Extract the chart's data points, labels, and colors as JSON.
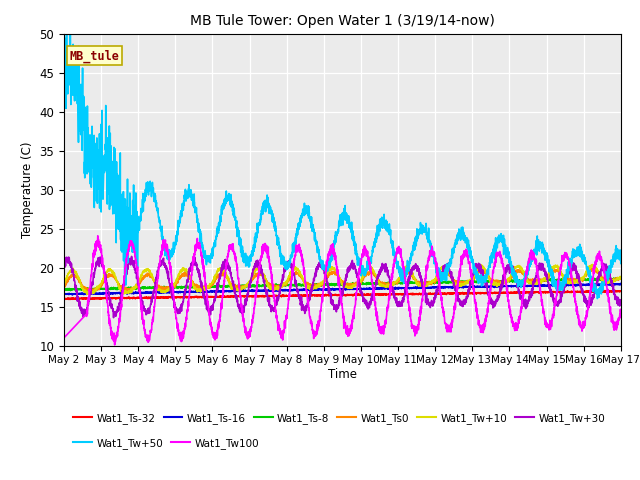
{
  "title": "MB Tule Tower: Open Water 1 (3/19/14-now)",
  "xlabel": "Time",
  "ylabel": "Temperature (C)",
  "ylim": [
    10,
    50
  ],
  "yticks": [
    10,
    15,
    20,
    25,
    30,
    35,
    40,
    45,
    50
  ],
  "background_color": "#ebebeb",
  "legend_label": "MB_tule",
  "series_order": [
    "Wat1_Ts-32",
    "Wat1_Ts-16",
    "Wat1_Ts-8",
    "Wat1_Ts0",
    "Wat1_Tw+10",
    "Wat1_Tw+30",
    "Wat1_Tw+50",
    "Wat1_Tw100"
  ],
  "series": {
    "Wat1_Ts-32": {
      "color": "#ff0000",
      "lw": 1.2
    },
    "Wat1_Ts-16": {
      "color": "#0000dd",
      "lw": 1.2
    },
    "Wat1_Ts-8": {
      "color": "#00cc00",
      "lw": 1.2
    },
    "Wat1_Ts0": {
      "color": "#ff8800",
      "lw": 1.2
    },
    "Wat1_Tw+10": {
      "color": "#dddd00",
      "lw": 1.2
    },
    "Wat1_Tw+30": {
      "color": "#aa00cc",
      "lw": 1.2
    },
    "Wat1_Tw+50": {
      "color": "#00ccff",
      "lw": 1.2
    },
    "Wat1_Tw100": {
      "color": "#ff00ff",
      "lw": 1.2
    }
  },
  "legend_row1": [
    "Wat1_Ts-32",
    "Wat1_Ts-16",
    "Wat1_Ts-8",
    "Wat1_Ts0",
    "Wat1_Tw+10",
    "Wat1_Tw+30"
  ],
  "legend_row2": [
    "Wat1_Tw+50",
    "Wat1_Tw100"
  ],
  "x_start": 0,
  "x_end": 15,
  "n_points": 3000,
  "xtick_labels": [
    "May 2",
    "May 3",
    "May 4",
    "May 5",
    "May 6",
    "May 7",
    "May 8",
    "May 9",
    "May 10",
    "May 11",
    "May 12",
    "May 13",
    "May 14",
    "May 15",
    "May 16",
    "May 17"
  ],
  "xtick_positions": [
    0,
    1,
    2,
    3,
    4,
    5,
    6,
    7,
    8,
    9,
    10,
    11,
    12,
    13,
    14,
    15
  ]
}
